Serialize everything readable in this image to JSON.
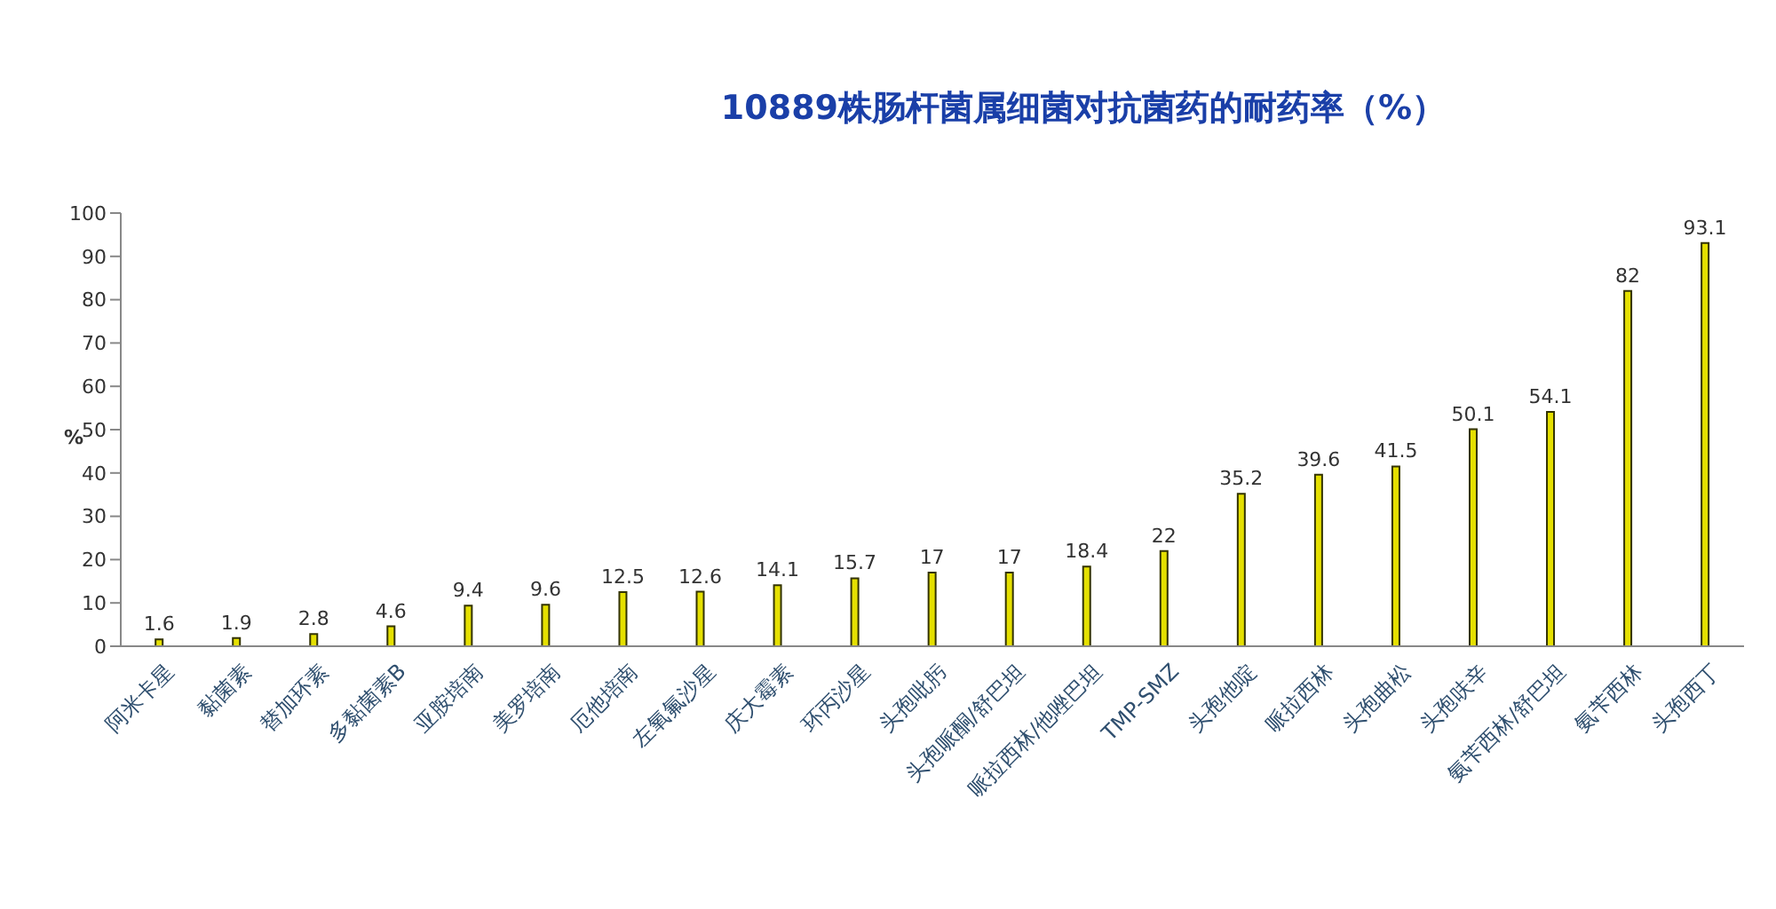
{
  "chart_data": {
    "type": "bar",
    "title": "10889株肠杆菌属细菌对抗菌药的耐药率（%）",
    "ylabel": "%",
    "categories": [
      "阿米卡星",
      "黏菌素",
      "替加环素",
      "多黏菌素B",
      "亚胺培南",
      "美罗培南",
      "厄他培南",
      "左氧氟沙星",
      "庆大霉素",
      "环丙沙星",
      "头孢吡肟",
      "头孢哌酮/舒巴坦",
      "哌拉西林/他唑巴坦",
      "TMP-SMZ",
      "头孢他啶",
      "哌拉西林",
      "头孢曲松",
      "头孢呋辛",
      "氨苄西林/舒巴坦",
      "氨苄西林",
      "头孢西丁"
    ],
    "values": [
      1.6,
      1.9,
      2.8,
      4.6,
      9.4,
      9.6,
      12.5,
      12.6,
      14.1,
      15.7,
      17,
      17,
      18.4,
      22,
      35.2,
      39.6,
      41.5,
      50.1,
      54.1,
      82,
      93.1
    ],
    "color": "#e5e000",
    "ylim": [
      0,
      100
    ],
    "yticks": [
      0,
      10,
      20,
      30,
      40,
      50,
      60,
      70,
      80,
      90,
      100
    ],
    "grid": false,
    "legend": false,
    "data_labels": true
  }
}
